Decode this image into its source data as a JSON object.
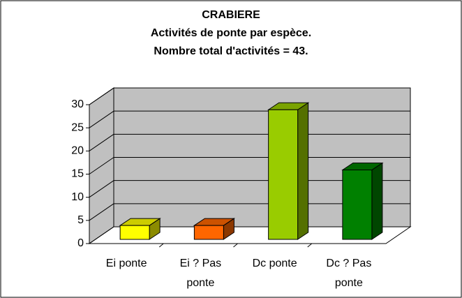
{
  "chart_data": {
    "type": "bar3d",
    "title": "CRABIERE",
    "subtitle": "Activités de ponte par espèce.",
    "annotation": "Nombre total d'activités = 43.",
    "categories": [
      "Ei ponte",
      "Ei ? Pas ponte",
      "Dc ponte",
      "Dc ? Pas ponte"
    ],
    "values": [
      3,
      3,
      28,
      15
    ],
    "colors": [
      "#ffff00",
      "#ff6600",
      "#99cc00",
      "#008000"
    ],
    "ylim": [
      0,
      30
    ],
    "yticks": [
      0,
      5,
      10,
      15,
      20,
      25,
      30
    ],
    "grid": true
  }
}
